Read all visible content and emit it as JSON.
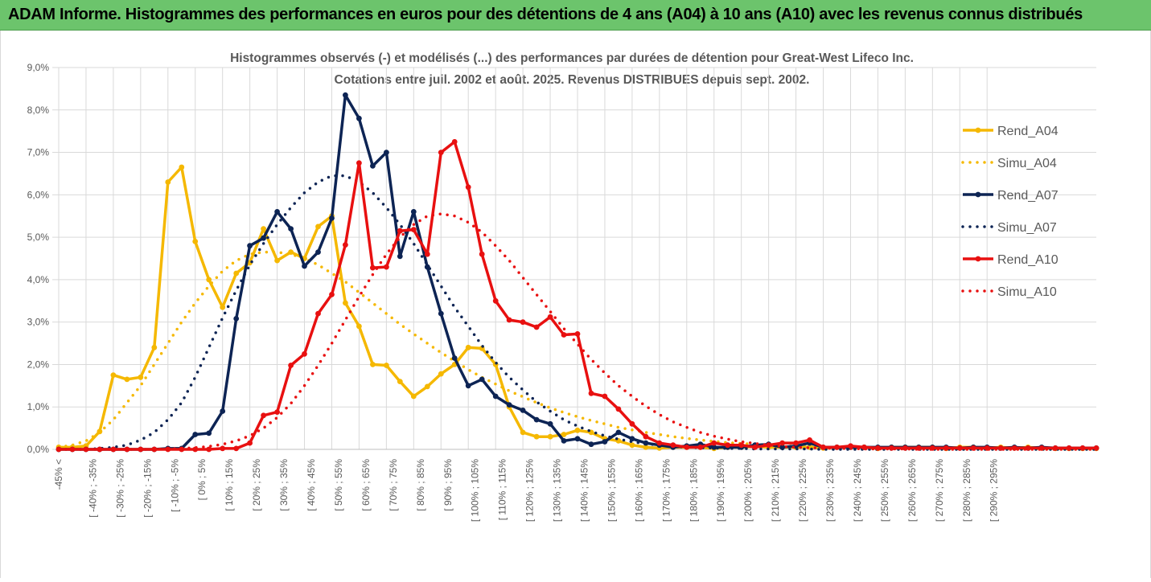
{
  "header": {
    "title": "ADAM Informe. Histogrammes des performances en euros pour des détentions de 4 ans (A04) à 10 ans (A10) avec les revenus connus distribués"
  },
  "chart_data": {
    "type": "line",
    "title": "Histogrammes observés (-) et modélisés (...) des performances par durées de détention pour Great-West Lifeco Inc.",
    "subtitle": "Cotations entre juil. 2002 et août. 2025. Revenus DISTRIBUES depuis sept. 2002.",
    "xlabel": "",
    "ylabel": "",
    "ylim": [
      0,
      9
    ],
    "yticks": [
      "0,0%",
      "1,0%",
      "2,0%",
      "3,0%",
      "4,0%",
      "5,0%",
      "6,0%",
      "7,0%",
      "8,0%",
      "9,0%"
    ],
    "xtick_labels": [
      "-45% <",
      "[ -40% ; -35%",
      "[ -30% ; -25%",
      "[ -20% ; -15%",
      "[ -10% ; -5%",
      "[ 0% ; 5%",
      "[ 10% ; 15%",
      "[ 20% ; 25%",
      "[ 30% ; 35%",
      "[ 40% ; 45%",
      "[ 50% ; 55%",
      "[ 60% ; 65%",
      "[ 70% ; 75%",
      "[ 80% ; 85%",
      "[ 90% ; 95%",
      "[ 100% ; 105%",
      "[ 110% ; 115%",
      "[ 120% ; 125%",
      "[ 130% ; 135%",
      "[ 140% ; 145%",
      "[ 150% ; 155%",
      "[ 160% ; 165%",
      "[ 170% ; 175%",
      "[ 180% ; 185%",
      "[ 190% ; 195%",
      "[ 200% ; 205%",
      "[ 210% ; 215%",
      "[ 220% ; 225%",
      "[ 230% ; 235%",
      "[ 240% ; 245%",
      "[ 250% ; 255%",
      "[ 260% ; 265%",
      "[ 270% ; 275%",
      "[ 280% ; 285%",
      "[ 290% ; 295%"
    ],
    "grid": {
      "vertical": true,
      "horizontal": true
    },
    "legend_position": "right",
    "series": [
      {
        "name": "Rend_A04",
        "style": "solid",
        "color": "#f5b800",
        "values": [
          0.05,
          0.05,
          0.08,
          0.42,
          1.75,
          1.65,
          1.7,
          2.4,
          6.3,
          6.65,
          4.9,
          4.0,
          3.35,
          4.15,
          4.4,
          5.2,
          4.45,
          4.65,
          4.5,
          5.25,
          5.5,
          3.45,
          2.9,
          2.0,
          1.98,
          1.6,
          1.25,
          1.48,
          1.78,
          2.0,
          2.4,
          2.38,
          2.0,
          1.0,
          0.4,
          0.3,
          0.3,
          0.35,
          0.45,
          0.4,
          0.25,
          0.2,
          0.1,
          0.05,
          0.03,
          0.05,
          0.05,
          0.05,
          0.02,
          0.05,
          0.05,
          0.07,
          0.05,
          0.05,
          0.05,
          0.05,
          0.03,
          0.05,
          0.05,
          0.05,
          0.02,
          0.05,
          0.05,
          0.05,
          0.05,
          0.02,
          0.05,
          0.05,
          0.03,
          0.05,
          0.03,
          0.05,
          0.03,
          0.02,
          0.02,
          0.02,
          0.02
        ]
      },
      {
        "name": "Simu_A04",
        "style": "dotted",
        "color": "#f5b800",
        "values": [
          0.05,
          0.1,
          0.2,
          0.4,
          0.7,
          1.1,
          1.5,
          2.0,
          2.5,
          3.0,
          3.45,
          3.85,
          4.2,
          4.45,
          4.6,
          4.65,
          4.65,
          4.6,
          4.5,
          4.35,
          4.15,
          3.95,
          3.7,
          3.45,
          3.2,
          2.95,
          2.72,
          2.5,
          2.28,
          2.08,
          1.88,
          1.7,
          1.54,
          1.38,
          1.24,
          1.1,
          0.98,
          0.87,
          0.77,
          0.68,
          0.6,
          0.52,
          0.46,
          0.4,
          0.35,
          0.3,
          0.26,
          0.22,
          0.19,
          0.16,
          0.14,
          0.12,
          0.1,
          0.09,
          0.07,
          0.06,
          0.05,
          0.04,
          0.04,
          0.03,
          0.03,
          0.02,
          0.02,
          0.02,
          0.02,
          0.01,
          0.01,
          0.01,
          0.01,
          0.01,
          0.01,
          0.01,
          0.01,
          0.01,
          0.01,
          0.01,
          0.01
        ]
      },
      {
        "name": "Rend_A07",
        "style": "solid",
        "color": "#0d2454",
        "values": [
          0,
          0,
          0,
          0,
          0,
          0,
          0,
          0,
          0.02,
          0.02,
          0.35,
          0.38,
          0.9,
          3.08,
          4.8,
          4.98,
          5.6,
          5.2,
          4.32,
          4.65,
          5.45,
          8.35,
          7.8,
          6.68,
          7.0,
          4.55,
          5.6,
          4.3,
          3.2,
          2.15,
          1.5,
          1.65,
          1.25,
          1.05,
          0.92,
          0.7,
          0.6,
          0.2,
          0.25,
          0.12,
          0.18,
          0.4,
          0.25,
          0.15,
          0.1,
          0.05,
          0.08,
          0.12,
          0.05,
          0.05,
          0.05,
          0.1,
          0.12,
          0.05,
          0.08,
          0.15,
          0.05,
          0.05,
          0.05,
          0.05,
          0.05,
          0.05,
          0.05,
          0.05,
          0.05,
          0.05,
          0.03,
          0.05,
          0.05,
          0.03,
          0.05,
          0.03,
          0.05,
          0.03,
          0.03,
          0.03,
          0.03
        ]
      },
      {
        "name": "Simu_A07",
        "style": "dotted",
        "color": "#0d2454",
        "values": [
          0,
          0,
          0,
          0.02,
          0.05,
          0.1,
          0.22,
          0.4,
          0.7,
          1.1,
          1.7,
          2.4,
          3.1,
          3.75,
          4.35,
          4.85,
          5.3,
          5.7,
          6.05,
          6.3,
          6.45,
          6.45,
          6.3,
          6.05,
          5.7,
          5.3,
          4.85,
          4.35,
          3.85,
          3.35,
          2.9,
          2.45,
          2.05,
          1.7,
          1.4,
          1.12,
          0.9,
          0.7,
          0.55,
          0.42,
          0.32,
          0.24,
          0.18,
          0.13,
          0.1,
          0.07,
          0.05,
          0.04,
          0.03,
          0.02,
          0.02,
          0.01,
          0.01,
          0.01,
          0.01,
          0.01,
          0,
          0,
          0,
          0,
          0,
          0,
          0,
          0,
          0,
          0,
          0,
          0,
          0,
          0,
          0,
          0,
          0,
          0,
          0,
          0,
          0
        ]
      },
      {
        "name": "Rend_A10",
        "style": "solid",
        "color": "#e81010",
        "values": [
          0,
          0,
          0,
          0,
          0,
          0,
          0,
          0,
          0,
          0,
          0,
          0,
          0.02,
          0.02,
          0.15,
          0.8,
          0.88,
          1.98,
          2.25,
          3.2,
          3.65,
          4.82,
          6.75,
          4.28,
          4.3,
          5.15,
          5.18,
          4.6,
          7.0,
          7.25,
          6.18,
          4.6,
          3.5,
          3.05,
          3.0,
          2.88,
          3.12,
          2.7,
          2.72,
          1.32,
          1.25,
          0.95,
          0.6,
          0.3,
          0.15,
          0.1,
          0.05,
          0.05,
          0.15,
          0.1,
          0.1,
          0.05,
          0.1,
          0.15,
          0.15,
          0.22,
          0.05,
          0.05,
          0.08,
          0.05,
          0.03,
          0.03,
          0.03,
          0.03,
          0.03,
          0.03,
          0.03,
          0.03,
          0.03,
          0.03,
          0.03,
          0.03,
          0.03,
          0.03,
          0.03,
          0.03,
          0.03
        ]
      },
      {
        "name": "Simu_A10",
        "style": "dotted",
        "color": "#e81010",
        "values": [
          0,
          0,
          0,
          0,
          0,
          0,
          0,
          0,
          0.01,
          0.02,
          0.04,
          0.07,
          0.12,
          0.2,
          0.32,
          0.5,
          0.75,
          1.08,
          1.5,
          1.98,
          2.5,
          3.05,
          3.6,
          4.12,
          4.6,
          5.0,
          5.3,
          5.5,
          5.55,
          5.5,
          5.35,
          5.12,
          4.8,
          4.45,
          4.05,
          3.65,
          3.25,
          2.85,
          2.48,
          2.12,
          1.8,
          1.5,
          1.25,
          1.02,
          0.82,
          0.65,
          0.52,
          0.4,
          0.31,
          0.24,
          0.18,
          0.14,
          0.1,
          0.07,
          0.05,
          0.04,
          0.03,
          0.02,
          0.02,
          0.01,
          0.01,
          0.01,
          0.01,
          0,
          0,
          0,
          0,
          0,
          0,
          0,
          0,
          0,
          0,
          0,
          0,
          0,
          0
        ]
      }
    ]
  }
}
